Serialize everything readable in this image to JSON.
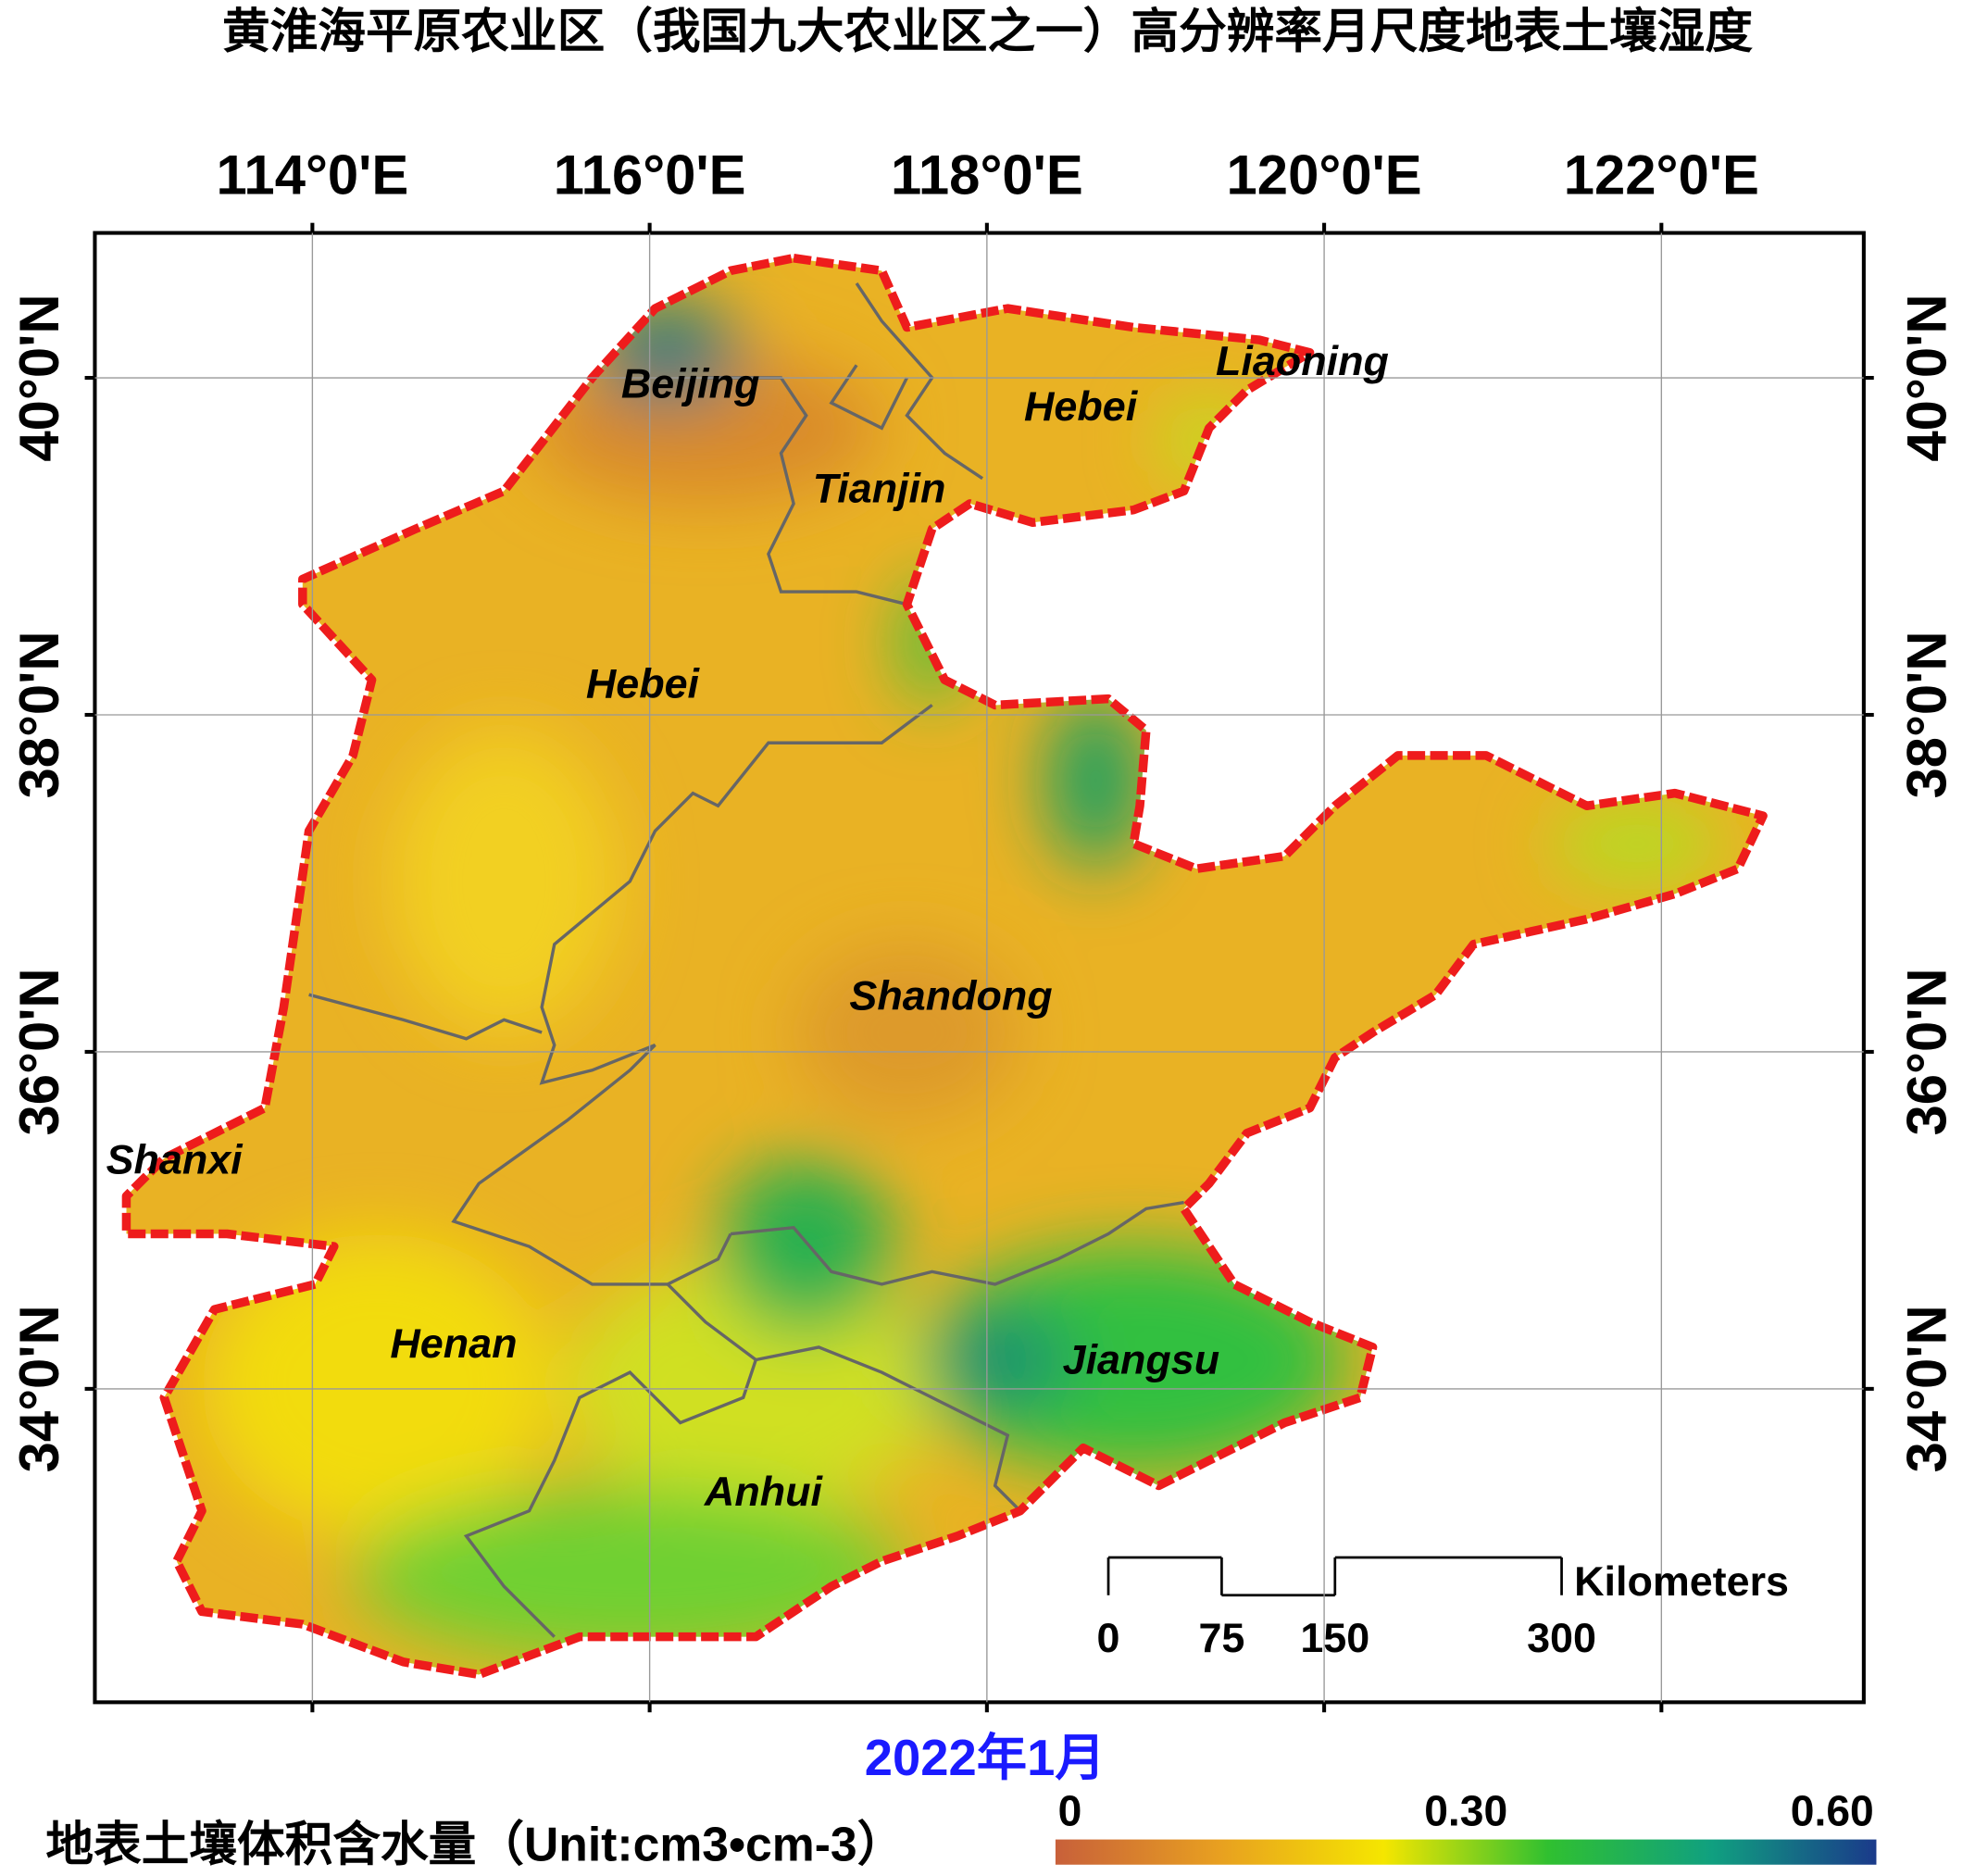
{
  "title": "黄淮海平原农业区（我国九大农业区之一）高分辨率月尺度地表土壤湿度",
  "map": {
    "xlim": [
      112.71,
      123.2
    ],
    "ylim": [
      32.14,
      40.86
    ],
    "xticks": [
      {
        "value": 114,
        "label": "114°0'E"
      },
      {
        "value": 116,
        "label": "116°0'E"
      },
      {
        "value": 118,
        "label": "118°0'E"
      },
      {
        "value": 120,
        "label": "120°0'E"
      },
      {
        "value": 122,
        "label": "122°0'E"
      }
    ],
    "yticks": [
      {
        "value": 34,
        "label": "34°0'N"
      },
      {
        "value": 36,
        "label": "36°0'N"
      },
      {
        "value": 38,
        "label": "38°0'N"
      },
      {
        "value": 40,
        "label": "40°0'N"
      }
    ],
    "regions": [
      "Beijing",
      "Liaoning",
      "Hebei",
      "Tianjin",
      "Hebei",
      "Shandong",
      "Shanxi",
      "Henan",
      "Jiangsu",
      "Anhui"
    ],
    "grid": true
  },
  "scale_bar": {
    "ticks": [
      0,
      75,
      150,
      300
    ],
    "unit": "Kilometers"
  },
  "date": "2022年1月",
  "legend": {
    "title": "地表土壤体积含水量（Unit:cm3•cm-3）",
    "ticks": [
      {
        "value": 0,
        "label": "0"
      },
      {
        "value": 0.3,
        "label": "0.30"
      },
      {
        "value": 0.6,
        "label": "0.60"
      }
    ],
    "colors": [
      "#c8603a",
      "#e8a020",
      "#f5e600",
      "#30c030",
      "#10a080",
      "#1a3a8a"
    ]
  }
}
